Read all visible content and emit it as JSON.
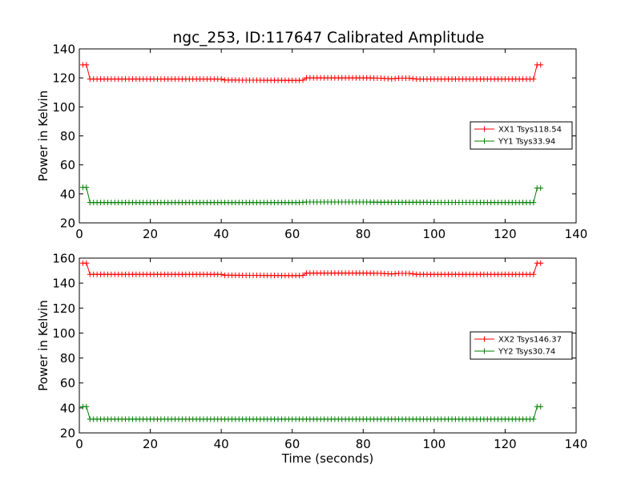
{
  "title": "ngc_253, ID:117647 Calibrated Amplitude",
  "chart_data": [
    {
      "type": "line",
      "ylabel": "Power in Kelvin",
      "xlabel": "",
      "xlim": [
        0,
        140
      ],
      "ylim": [
        20,
        140
      ],
      "xticks": [
        0,
        20,
        40,
        60,
        80,
        100,
        120,
        140
      ],
      "yticks": [
        20,
        40,
        60,
        80,
        100,
        120,
        140
      ],
      "legend_position": "center-right",
      "grid": false,
      "series": [
        {
          "name": "XX1 Tsys118.54",
          "color": "#ff0000",
          "marker": "plus",
          "points": [
            [
              1,
              129
            ],
            [
              2,
              129
            ],
            [
              3,
              119.2
            ],
            [
              40,
              119.2
            ],
            [
              41,
              118.5
            ],
            [
              62,
              118.3
            ],
            [
              63,
              118.4
            ],
            [
              64,
              120
            ],
            [
              80,
              120
            ],
            [
              85,
              119.8
            ],
            [
              88,
              119.3
            ],
            [
              90,
              119.8
            ],
            [
              93,
              119.8
            ],
            [
              95,
              119.2
            ],
            [
              128,
              119.2
            ],
            [
              129,
              129
            ],
            [
              130,
              129
            ]
          ]
        },
        {
          "name": "YY1 Tsys33.94",
          "color": "#008000",
          "marker": "plus",
          "points": [
            [
              1,
              44.5
            ],
            [
              2,
              44.5
            ],
            [
              3,
              34
            ],
            [
              62,
              34
            ],
            [
              64,
              34.4
            ],
            [
              80,
              34.4
            ],
            [
              85,
              34.2
            ],
            [
              128,
              34
            ],
            [
              129,
              44
            ],
            [
              130,
              44
            ]
          ]
        }
      ]
    },
    {
      "type": "line",
      "ylabel": "Power in Kelvin",
      "xlabel": "Time (seconds)",
      "xlim": [
        0,
        140
      ],
      "ylim": [
        20,
        160
      ],
      "xticks": [
        0,
        20,
        40,
        60,
        80,
        100,
        120,
        140
      ],
      "yticks": [
        20,
        40,
        60,
        80,
        100,
        120,
        140,
        160
      ],
      "legend_position": "center-right",
      "grid": false,
      "series": [
        {
          "name": "XX2 Tsys146.37",
          "color": "#ff0000",
          "marker": "plus",
          "points": [
            [
              1,
              156
            ],
            [
              2,
              156
            ],
            [
              3,
              147
            ],
            [
              40,
              147
            ],
            [
              41,
              146.3
            ],
            [
              62,
              146
            ],
            [
              63,
              146.2
            ],
            [
              64,
              148
            ],
            [
              80,
              148
            ],
            [
              85,
              147.8
            ],
            [
              88,
              147.3
            ],
            [
              90,
              147.8
            ],
            [
              93,
              147.8
            ],
            [
              95,
              147
            ],
            [
              128,
              147
            ],
            [
              129,
              156
            ],
            [
              130,
              156
            ]
          ]
        },
        {
          "name": "YY2 Tsys30.74",
          "color": "#008000",
          "marker": "plus",
          "points": [
            [
              1,
              41
            ],
            [
              2,
              41
            ],
            [
              3,
              31
            ],
            [
              128,
              31
            ],
            [
              129,
              41
            ],
            [
              130,
              41
            ]
          ]
        }
      ]
    }
  ]
}
